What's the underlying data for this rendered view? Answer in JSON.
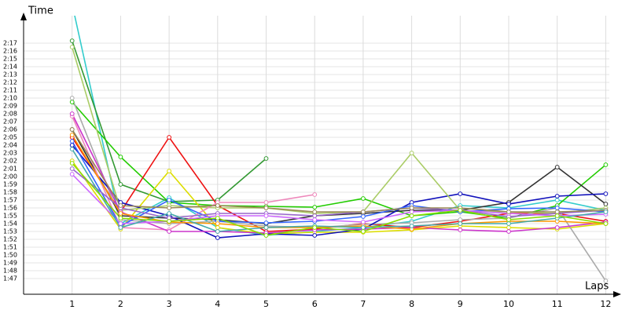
{
  "chart_data": {
    "type": "line",
    "ylabel": "Time",
    "xlabel": "Laps",
    "x": [
      1,
      2,
      3,
      4,
      5,
      6,
      7,
      8,
      9,
      10,
      11,
      12
    ],
    "xlim": [
      0,
      12
    ],
    "xticks": [
      1,
      2,
      3,
      4,
      5,
      6,
      7,
      8,
      9,
      10,
      11,
      12
    ],
    "ylim": [
      105,
      140
    ],
    "yticks": [
      {
        "value": 107,
        "label": "1:47"
      },
      {
        "value": 108,
        "label": "1:48"
      },
      {
        "value": 109,
        "label": "1:49"
      },
      {
        "value": 110,
        "label": "1:50"
      },
      {
        "value": 111,
        "label": "1:51"
      },
      {
        "value": 112,
        "label": "1:52"
      },
      {
        "value": 113,
        "label": "1:53"
      },
      {
        "value": 114,
        "label": "1:54"
      },
      {
        "value": 115,
        "label": "1:55"
      },
      {
        "value": 116,
        "label": "1:56"
      },
      {
        "value": 117,
        "label": "1:57"
      },
      {
        "value": 118,
        "label": "1:58"
      },
      {
        "value": 119,
        "label": "1:59"
      },
      {
        "value": 120,
        "label": "2:00"
      },
      {
        "value": 121,
        "label": "2:01"
      },
      {
        "value": 122,
        "label": "2:02"
      },
      {
        "value": 123,
        "label": "2:03"
      },
      {
        "value": 124,
        "label": "2:04"
      },
      {
        "value": 125,
        "label": "2:05"
      },
      {
        "value": 126,
        "label": "2:06"
      },
      {
        "value": 127,
        "label": "2:07"
      },
      {
        "value": 128,
        "label": "2:08"
      },
      {
        "value": 129,
        "label": "2:09"
      },
      {
        "value": 130,
        "label": "2:10"
      },
      {
        "value": 131,
        "label": "2:11"
      },
      {
        "value": 132,
        "label": "2:12"
      },
      {
        "value": 133,
        "label": "2:13"
      },
      {
        "value": 134,
        "label": "2:14"
      },
      {
        "value": 135,
        "label": "2:15"
      },
      {
        "value": 136,
        "label": "2:16"
      },
      {
        "value": 137,
        "label": "2:17"
      }
    ],
    "grid": true,
    "series": [
      {
        "color": "#33cccc",
        "values": [
          142,
          114,
          117.3,
          113.5,
          112.5,
          113,
          113.5,
          114.3,
          116.3,
          116,
          117,
          115.7
        ]
      },
      {
        "color": "#339933",
        "values": [
          137.3,
          119,
          116.8,
          117,
          122.3,
          null,
          null,
          null,
          null,
          null,
          null,
          null
        ]
      },
      {
        "color": "#22cc00",
        "values": [
          129.5,
          122.5,
          116.7,
          116.3,
          116.2,
          116.1,
          117.2,
          115,
          115.5,
          114.7,
          116.3,
          121.5
        ]
      },
      {
        "color": "#ee1111",
        "values": [
          125,
          115.5,
          125,
          116.3,
          113,
          113.3,
          114,
          113.5,
          114.3,
          115.3,
          115.3,
          114.3
        ]
      },
      {
        "color": "#dddd00",
        "values": [
          122,
          113.3,
          120.7,
          113.5,
          112.7,
          112.9,
          112.9,
          113.2,
          113.7,
          113.5,
          113.3,
          114
        ]
      },
      {
        "color": "#aaaaaa",
        "values": [
          130,
          114.5,
          114,
          114.3,
          113.7,
          113.5,
          113.9,
          114.1,
          114.5,
          114.7,
          116,
          106.7
        ]
      },
      {
        "color": "#333333",
        "values": [
          126,
          115,
          114.7,
          114.5,
          114,
          115,
          115.3,
          115.7,
          115.7,
          116.7,
          121.2,
          116.5
        ]
      },
      {
        "color": "#1111bb",
        "values": [
          124,
          116.7,
          115,
          112.2,
          112.7,
          112.5,
          113.3,
          116.7,
          117.8,
          116.5,
          117.5,
          117.8
        ]
      },
      {
        "color": "#aacc66",
        "values": [
          136.5,
          115.7,
          116.3,
          116,
          116,
          115.3,
          115.5,
          123,
          115.7,
          115.5,
          115.3,
          116
        ]
      },
      {
        "color": "#ee88bb",
        "values": [
          127.7,
          113.5,
          113.2,
          116.7,
          116.7,
          117.7,
          null,
          null,
          null,
          null,
          null,
          null
        ]
      },
      {
        "color": "#cc33cc",
        "values": [
          128,
          115.5,
          113,
          113,
          112.8,
          113.2,
          113.3,
          113.5,
          113.2,
          113,
          113.5,
          114.2
        ]
      },
      {
        "color": "#3366ff",
        "values": [
          124.5,
          113.7,
          117,
          114.3,
          114.1,
          114.3,
          114.9,
          116.3,
          115.5,
          115.9,
          116,
          115.5
        ]
      },
      {
        "color": "#ff9900",
        "values": [
          125.3,
          115.3,
          114.2,
          114,
          113.5,
          113.5,
          113.7,
          113.3,
          114,
          114.3,
          114.3,
          114
        ]
      },
      {
        "color": "#9966cc",
        "values": [
          121,
          116,
          114.7,
          115.3,
          115.3,
          115,
          115.5,
          116,
          115.7,
          114.9,
          115.3,
          115.7
        ]
      },
      {
        "color": "#cc66ff",
        "values": [
          120.3,
          114,
          114.3,
          115,
          115,
          114.5,
          114.2,
          115.5,
          115.7,
          115.3,
          115,
          115.2
        ]
      },
      {
        "color": "#998855",
        "values": [
          126,
          116.3,
          116,
          116.3,
          116,
          115.5,
          115.5,
          116,
          116,
          115.5,
          115.5,
          115.7
        ]
      },
      {
        "color": "#44aaaa",
        "values": [
          123.5,
          113.5,
          115.3,
          113,
          113.5,
          113.7,
          113.5,
          113.7,
          114,
          114,
          114.7,
          115.5
        ]
      },
      {
        "color": "#88dd00",
        "values": [
          121.7,
          114.7,
          114.3,
          114.7,
          112.5,
          113.5,
          113,
          115,
          115.7,
          114.5,
          115,
          114
        ]
      }
    ]
  }
}
